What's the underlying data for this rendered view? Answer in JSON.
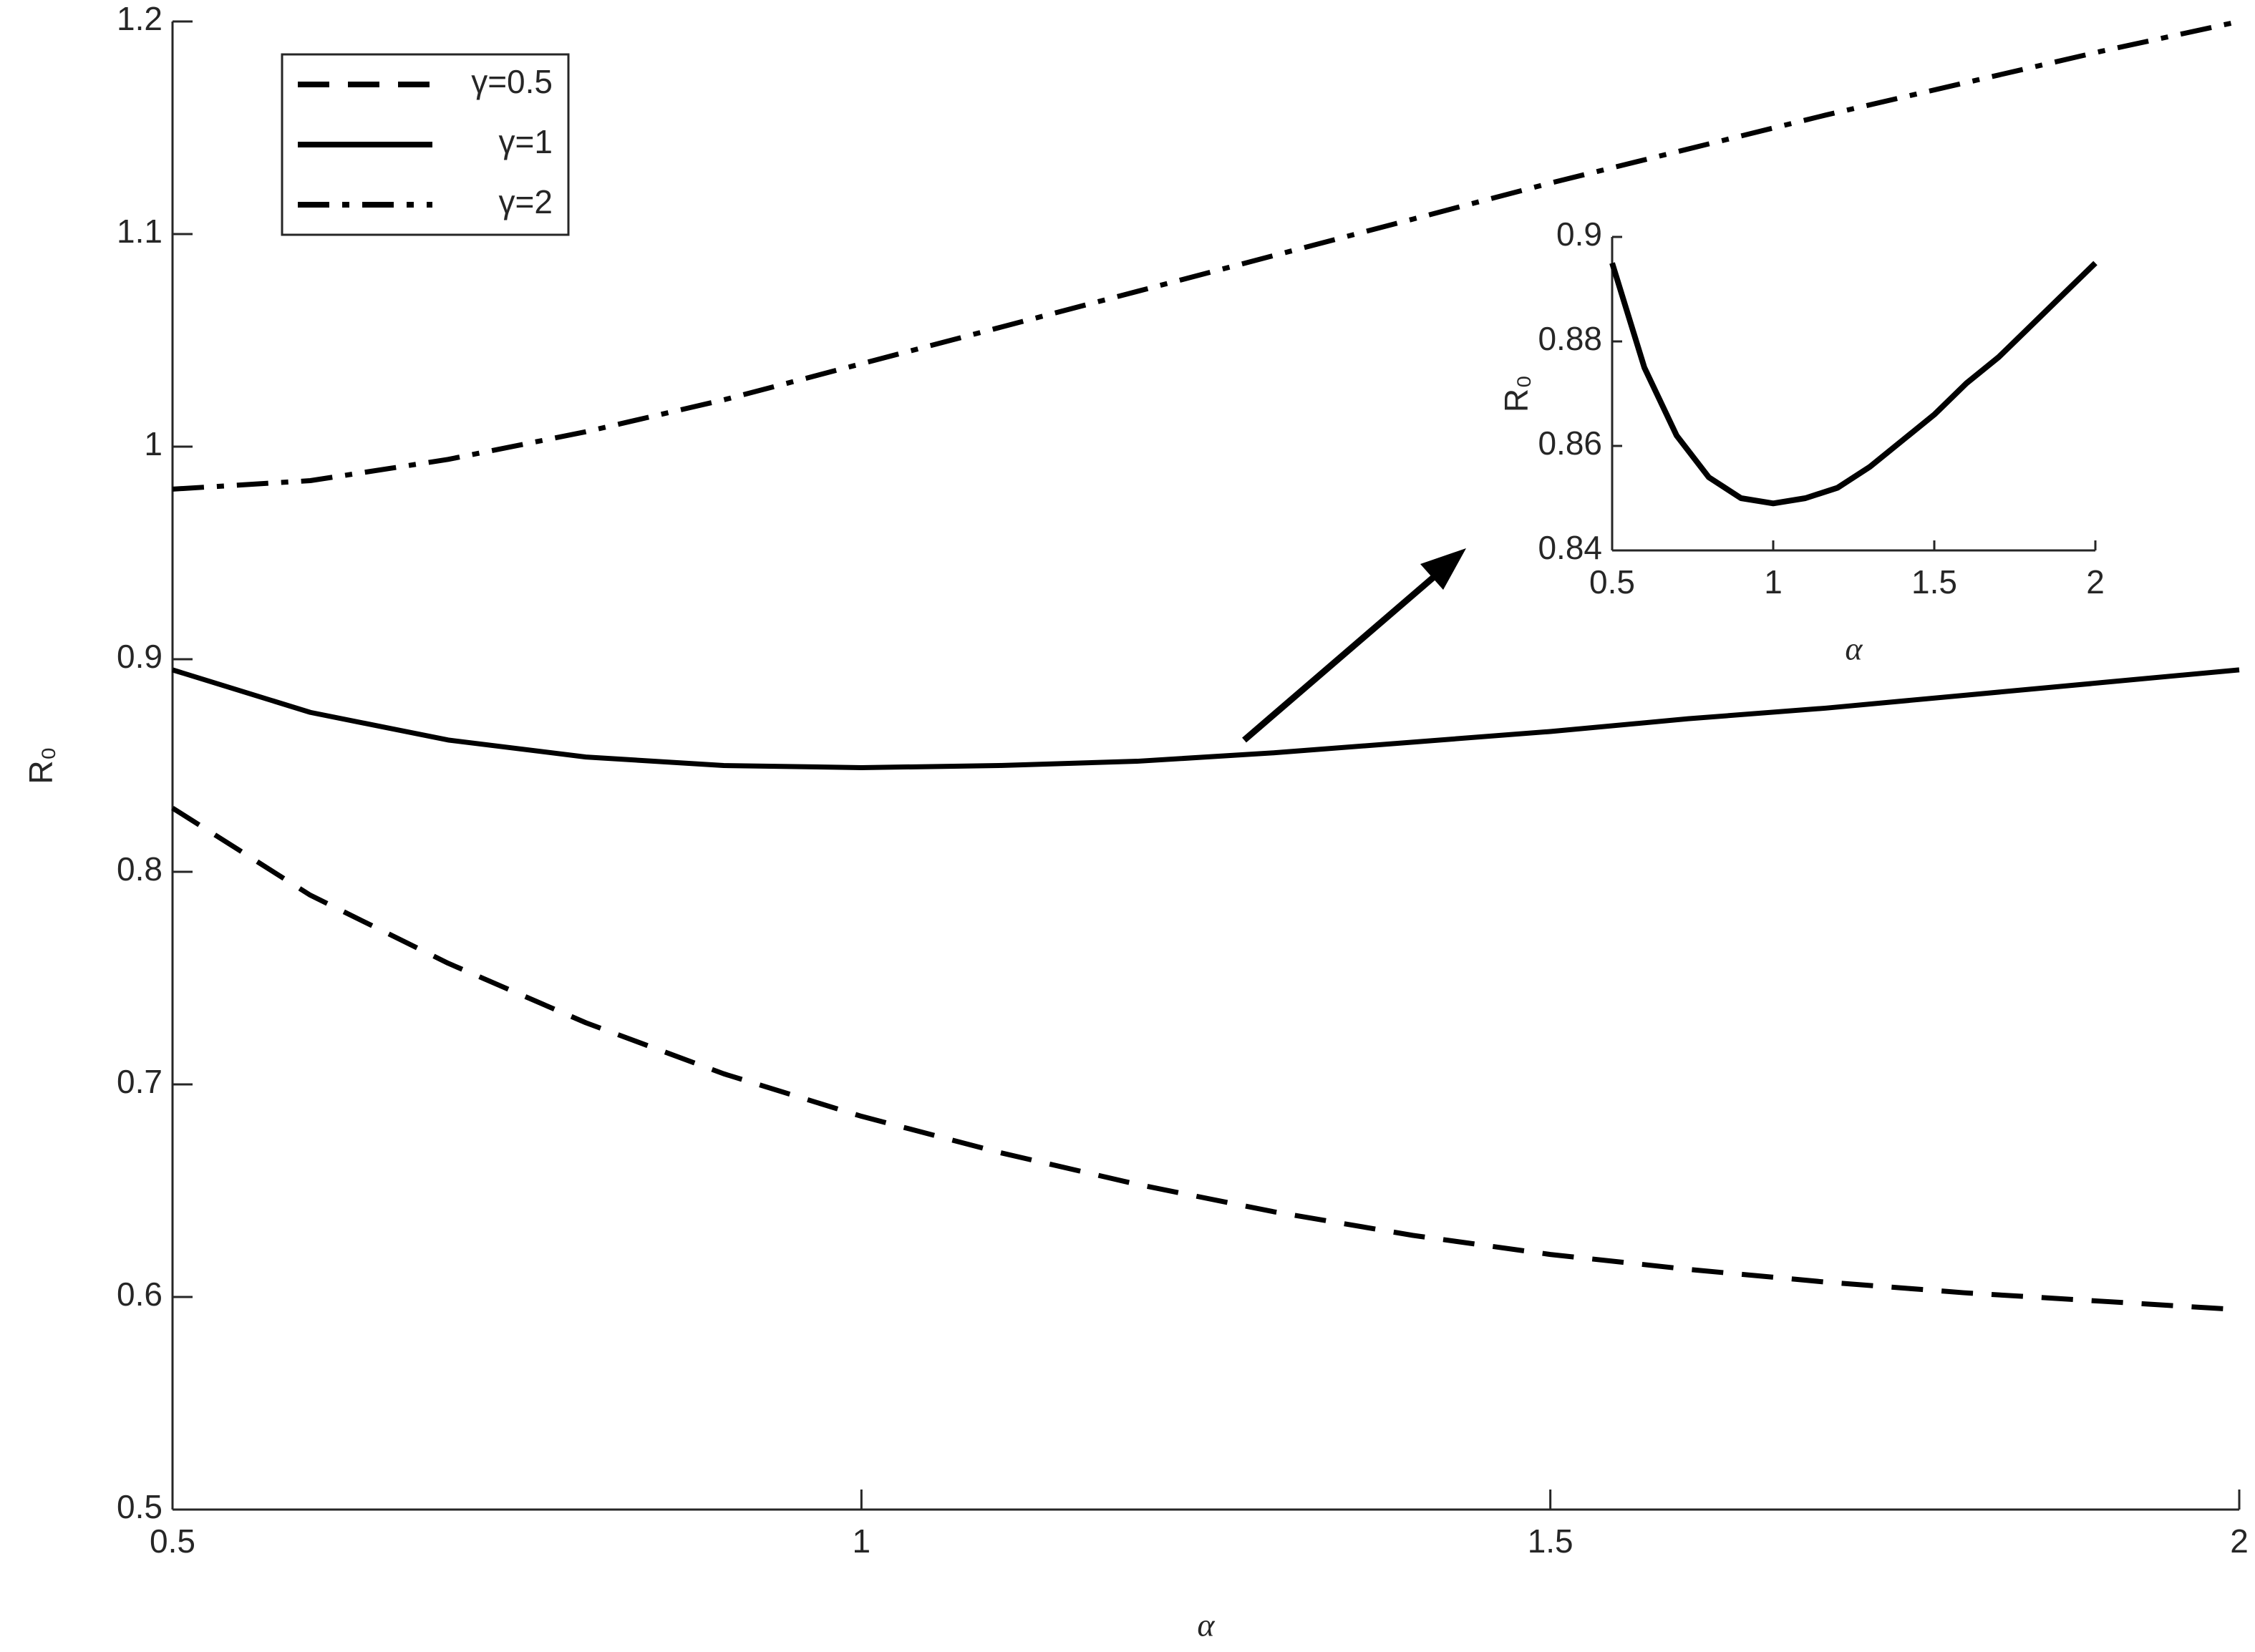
{
  "chart_data": [
    {
      "type": "line",
      "x_label": "α",
      "y_label": "R₀",
      "x": [
        0.5,
        0.6,
        0.7,
        0.8,
        0.9,
        1.0,
        1.1,
        1.2,
        1.3,
        1.4,
        1.5,
        1.6,
        1.7,
        1.8,
        1.9,
        2.0
      ],
      "series": [
        {
          "name": "γ=0.5",
          "color": "#000000",
          "style": "dashed",
          "values": [
            0.83,
            0.789,
            0.757,
            0.729,
            0.705,
            0.685,
            0.668,
            0.653,
            0.64,
            0.629,
            0.62,
            0.613,
            0.607,
            0.602,
            0.598,
            0.594
          ]
        },
        {
          "name": "γ=1",
          "color": "#000000",
          "style": "solid",
          "values": [
            0.895,
            0.875,
            0.862,
            0.854,
            0.85,
            0.849,
            0.85,
            0.852,
            0.856,
            0.861,
            0.866,
            0.872,
            0.877,
            0.883,
            0.889,
            0.895
          ]
        },
        {
          "name": "γ=2",
          "color": "#000000",
          "style": "dashdot",
          "values": [
            0.98,
            0.984,
            0.994,
            1.007,
            1.022,
            1.039,
            1.056,
            1.073,
            1.09,
            1.107,
            1.124,
            1.14,
            1.156,
            1.171,
            1.186,
            1.2
          ]
        }
      ],
      "xlim": [
        0.5,
        2
      ],
      "xticks": [
        0.5,
        1,
        1.5,
        2
      ],
      "ylim": [
        0.5,
        1.2
      ],
      "yticks": [
        0.5,
        0.6,
        0.7,
        0.8,
        0.9,
        1,
        1.1,
        1.2
      ],
      "grid": false,
      "legend": "upper left"
    },
    {
      "type": "line",
      "x_label": "α",
      "y_label": "R₀",
      "x": [
        0.5,
        0.6,
        0.7,
        0.8,
        0.9,
        1.0,
        1.1,
        1.2,
        1.3,
        1.4,
        1.5,
        1.6,
        1.7,
        1.8,
        1.9,
        2.0
      ],
      "series": [
        {
          "color": "#000000",
          "style": "solid",
          "values": [
            0.895,
            0.875,
            0.862,
            0.854,
            0.85,
            0.849,
            0.85,
            0.852,
            0.856,
            0.861,
            0.866,
            0.872,
            0.877,
            0.883,
            0.889,
            0.895
          ]
        }
      ],
      "xlim": [
        0.5,
        2
      ],
      "xticks": [
        0.5,
        1,
        1.5,
        2
      ],
      "ylim": [
        0.84,
        0.9
      ],
      "yticks": [
        0.84,
        0.86,
        0.88,
        0.9
      ],
      "grid": false
    }
  ]
}
